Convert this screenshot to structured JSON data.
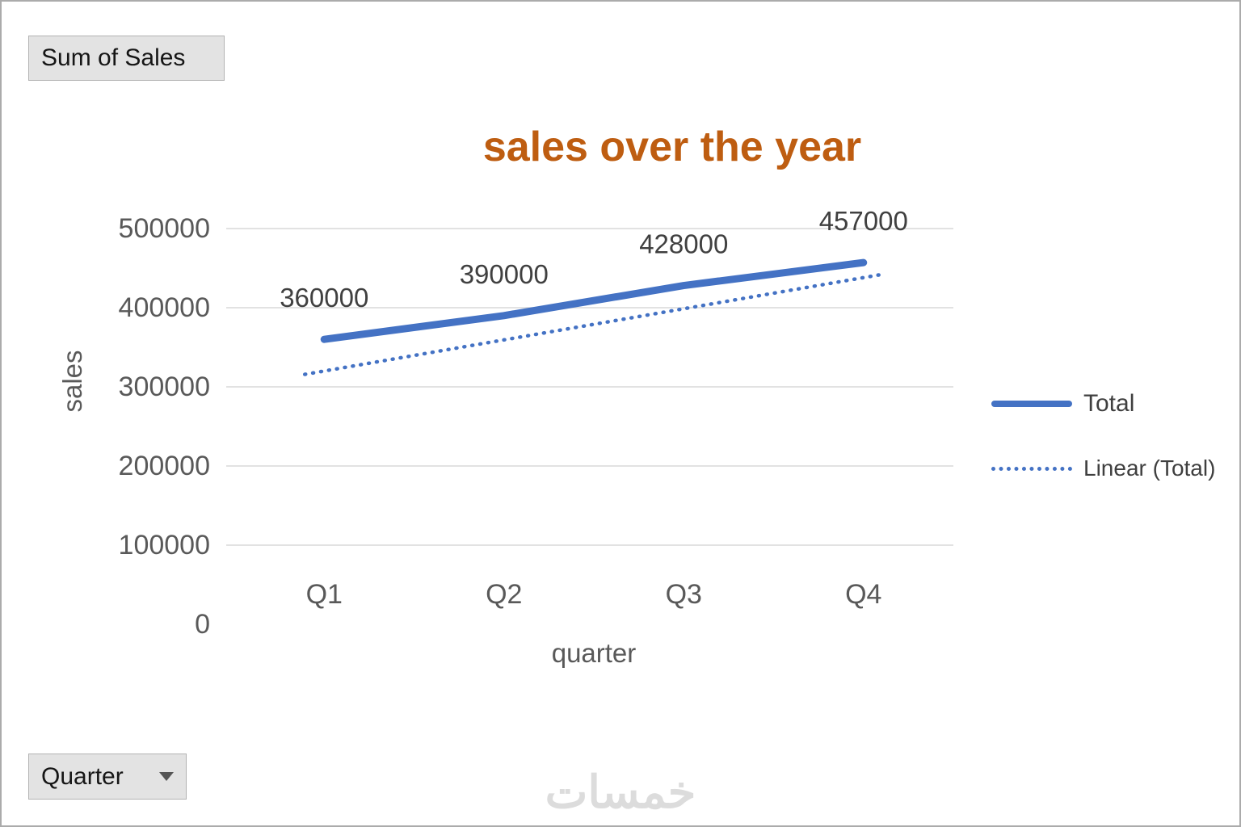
{
  "pivot_buttons": {
    "value_field": "Sum of Sales",
    "axis_field": "Quarter"
  },
  "watermark": {
    "text": "خمسات"
  },
  "chart_data": {
    "type": "line",
    "title": "sales over the year",
    "xlabel": "quarter",
    "ylabel": "sales",
    "categories": [
      "Q1",
      "Q2",
      "Q3",
      "Q4"
    ],
    "series": [
      {
        "name": "Total",
        "values": [
          360000,
          390000,
          428000,
          457000
        ],
        "data_labels": [
          "360000",
          "390000",
          "428000",
          "457000"
        ],
        "color": "#4472C4",
        "line_style": "solid"
      }
    ],
    "trendline": {
      "name": "Linear (Total)",
      "color": "#4472C4",
      "line_style": "dotted",
      "endpoint_values": [
        320000,
        438000
      ]
    },
    "ylim": [
      0,
      500000
    ],
    "yticks": [
      0,
      100000,
      200000,
      300000,
      400000,
      500000
    ],
    "grid": true,
    "legend_position": "right",
    "colors": {
      "gridline": "#D9D9D9",
      "axis_text": "#595959",
      "label_text": "#404040",
      "title": "#BE5D11"
    }
  }
}
